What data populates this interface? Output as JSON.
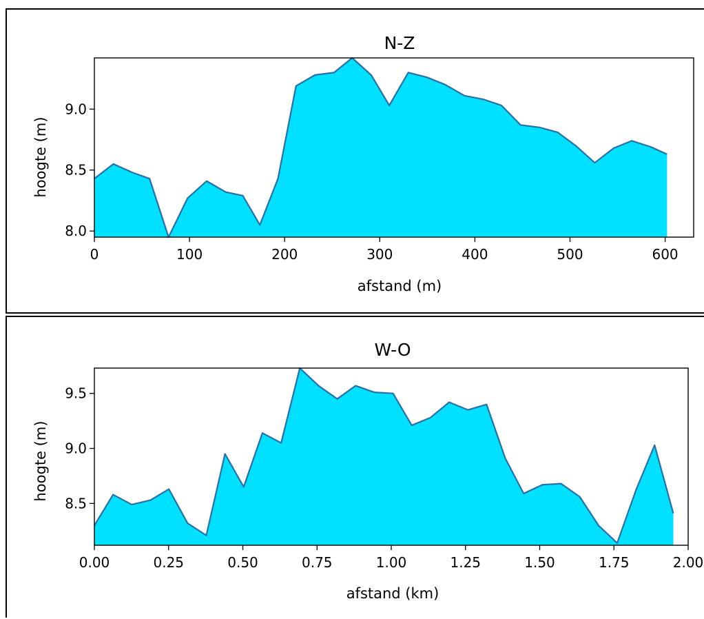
{
  "chart_data": [
    {
      "type": "area",
      "title": "N-Z",
      "xlabel": "afstand (m)",
      "ylabel": "hoogte (m)",
      "xlim": [
        0,
        630
      ],
      "ylim": [
        7.95,
        9.42
      ],
      "xticks": [
        0,
        100,
        200,
        300,
        400,
        500,
        600
      ],
      "xtick_labels": [
        "0",
        "100",
        "200",
        "300",
        "400",
        "500",
        "600"
      ],
      "yticks": [
        8.0,
        8.5,
        9.0
      ],
      "ytick_labels": [
        "8.0",
        "8.5",
        "9.0"
      ],
      "x": [
        0,
        20,
        40,
        58,
        78,
        98,
        118,
        138,
        156,
        174,
        193,
        212,
        232,
        252,
        271,
        291,
        310,
        330,
        350,
        369,
        389,
        409,
        428,
        448,
        468,
        487,
        506,
        526,
        546,
        565,
        585,
        602
      ],
      "y": [
        8.43,
        8.55,
        8.48,
        8.43,
        7.95,
        8.27,
        8.41,
        8.32,
        8.29,
        8.05,
        8.43,
        9.19,
        9.28,
        9.3,
        9.42,
        9.28,
        9.03,
        9.3,
        9.26,
        9.2,
        9.11,
        9.08,
        9.03,
        8.87,
        8.85,
        8.81,
        8.7,
        8.56,
        8.68,
        8.74,
        8.69,
        8.63
      ],
      "fill_color": "#00e0ff",
      "line_color": "#2a6fa8",
      "grid": false
    },
    {
      "type": "area",
      "title": "W-O",
      "xlabel": "afstand (km)",
      "ylabel": "hoogte (m)",
      "xlim": [
        0,
        2.0
      ],
      "ylim": [
        8.12,
        9.73
      ],
      "xticks": [
        0.0,
        0.25,
        0.5,
        0.75,
        1.0,
        1.25,
        1.5,
        1.75,
        2.0
      ],
      "xtick_labels": [
        "0.00",
        "0.25",
        "0.50",
        "0.75",
        "1.00",
        "1.25",
        "1.50",
        "1.75",
        "2.00"
      ],
      "yticks": [
        8.5,
        9.0,
        9.5
      ],
      "ytick_labels": [
        "8.5",
        "9.0",
        "9.5"
      ],
      "x": [
        0.0,
        0.063,
        0.126,
        0.189,
        0.251,
        0.314,
        0.377,
        0.44,
        0.503,
        0.566,
        0.629,
        0.692,
        0.755,
        0.818,
        0.88,
        0.943,
        1.006,
        1.069,
        1.132,
        1.195,
        1.258,
        1.321,
        1.384,
        1.446,
        1.509,
        1.572,
        1.635,
        1.698,
        1.761,
        1.824,
        1.887,
        1.95
      ],
      "y": [
        8.3,
        8.58,
        8.49,
        8.53,
        8.63,
        8.32,
        8.21,
        8.95,
        8.65,
        9.14,
        9.05,
        9.73,
        9.57,
        9.45,
        9.57,
        9.51,
        9.5,
        9.21,
        9.28,
        9.42,
        9.35,
        9.4,
        8.91,
        8.59,
        8.67,
        8.68,
        8.56,
        8.3,
        8.14,
        8.62,
        9.03,
        8.41
      ],
      "fill_color": "#00e0ff",
      "line_color": "#2a6fa8",
      "grid": false
    }
  ]
}
